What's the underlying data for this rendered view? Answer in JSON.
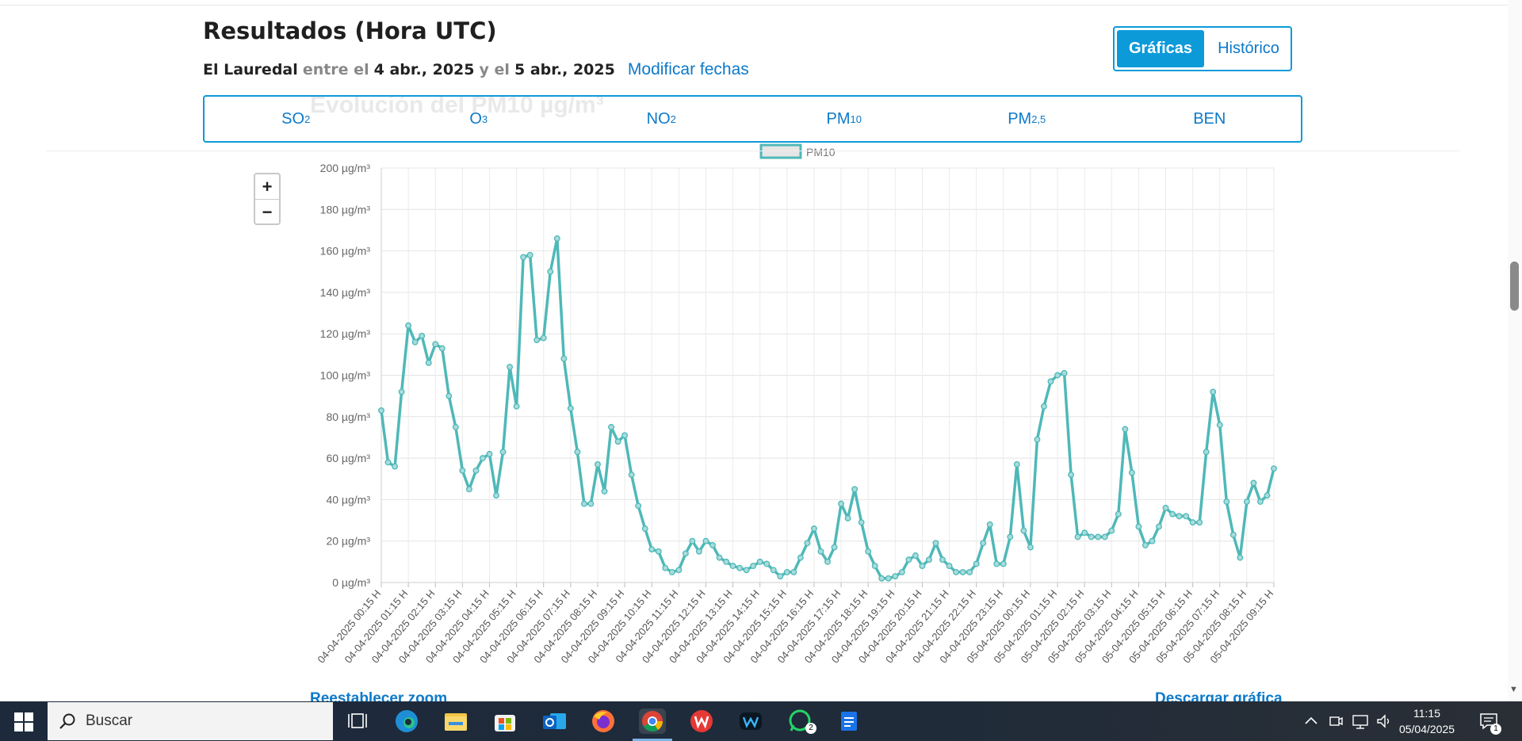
{
  "header": {
    "title": "Resultados (Hora UTC)",
    "station": "El Lauredal",
    "between": "entre el",
    "date_from": "4 abr., 2025",
    "and": "y el",
    "date_to": "5 abr., 2025",
    "modify_link": "Modificar fechas"
  },
  "view_toggle": {
    "active": "Gráficas",
    "inactive": "Histórico"
  },
  "pollutant_tabs": [
    {
      "base": "SO",
      "sub": "2"
    },
    {
      "base": "O",
      "sub": "3"
    },
    {
      "base": "NO",
      "sub": "2"
    },
    {
      "base": "PM",
      "sub": "10"
    },
    {
      "base": "PM",
      "sub": "2,5"
    },
    {
      "base": "BEN",
      "sub": ""
    }
  ],
  "zoom": {
    "plus": "+",
    "minus": "−"
  },
  "links": {
    "reset_zoom": "Reestablecer zoom",
    "download": "Descargar gráfica"
  },
  "chart_data": {
    "type": "line",
    "title": "Evolución del PM10 µg/m³",
    "legend": "PM10",
    "line_color": "#4fb8b8",
    "ylim": [
      0,
      200
    ],
    "y_ticks": [
      "0 µg/m³",
      "20 µg/m³",
      "40 µg/m³",
      "60 µg/m³",
      "80 µg/m³",
      "100 µg/m³",
      "120 µg/m³",
      "140 µg/m³",
      "160 µg/m³",
      "180 µg/m³",
      "200 µg/m³"
    ],
    "x_tick_labels": [
      "04-04-2025 00:15 H",
      "04-04-2025 01:15 H",
      "04-04-2025 02:15 H",
      "04-04-2025 03:15 H",
      "04-04-2025 04:15 H",
      "04-04-2025 05:15 H",
      "04-04-2025 06:15 H",
      "04-04-2025 07:15 H",
      "04-04-2025 08:15 H",
      "04-04-2025 09:15 H",
      "04-04-2025 10:15 H",
      "04-04-2025 11:15 H",
      "04-04-2025 12:15 H",
      "04-04-2025 13:15 H",
      "04-04-2025 14:15 H",
      "04-04-2025 15:15 H",
      "04-04-2025 16:15 H",
      "04-04-2025 17:15 H",
      "04-04-2025 18:15 H",
      "04-04-2025 19:15 H",
      "04-04-2025 20:15 H",
      "04-04-2025 21:15 H",
      "04-04-2025 22:15 H",
      "04-04-2025 23:15 H",
      "05-04-2025 00:15 H",
      "05-04-2025 01:15 H",
      "05-04-2025 02:15 H",
      "05-04-2025 03:15 H",
      "05-04-2025 04:15 H",
      "05-04-2025 05:15 H",
      "05-04-2025 06:15 H",
      "05-04-2025 07:15 H",
      "05-04-2025 08:15 H",
      "05-04-2025 09:15 H"
    ],
    "values": [
      83,
      58,
      56,
      92,
      124,
      116,
      119,
      106,
      115,
      113,
      90,
      75,
      54,
      45,
      54,
      60,
      62,
      42,
      63,
      104,
      85,
      157,
      158,
      117,
      118,
      150,
      166,
      108,
      84,
      63,
      38,
      38,
      57,
      44,
      75,
      68,
      71,
      52,
      37,
      26,
      16,
      15,
      7,
      5,
      6,
      14,
      20,
      15,
      20,
      18,
      12,
      10,
      8,
      7,
      6,
      8,
      10,
      9,
      6,
      3,
      5,
      5,
      12,
      19,
      26,
      15,
      10,
      17,
      38,
      31,
      45,
      29,
      15,
      8,
      2,
      2,
      3,
      5,
      11,
      13,
      8,
      11,
      19,
      11,
      8,
      5,
      5,
      5,
      9,
      19,
      28,
      9,
      9,
      22,
      57,
      25,
      17,
      69,
      85,
      97,
      100,
      101,
      52,
      22,
      24,
      22,
      22,
      22,
      25,
      33,
      74,
      53,
      27,
      18,
      20,
      27,
      36,
      33,
      32,
      32,
      29,
      29,
      63,
      92,
      76,
      39,
      23,
      12,
      39,
      48,
      39,
      42,
      55
    ]
  },
  "taskbar": {
    "search_label": "Buscar",
    "time": "11:15",
    "date": "05/04/2025",
    "whatsapp_badge": "2",
    "notification_badge": "1"
  }
}
